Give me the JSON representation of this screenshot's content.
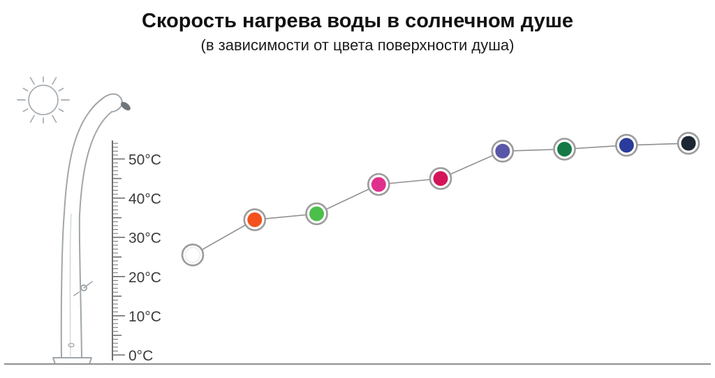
{
  "title": "Скорость нагрева воды в солнечном душе",
  "subtitle": "(в зависимости от цвета поверхности душа)",
  "chart_data": {
    "type": "line",
    "title": "Скорость нагрева воды в солнечном душе",
    "subtitle": "(в зависимости от цвета поверхности душа)",
    "xlabel": "",
    "ylabel": "",
    "ylim": [
      0,
      55
    ],
    "yticks": [
      0,
      10,
      20,
      30,
      40,
      50
    ],
    "ytick_labels": [
      "0°C",
      "10°C",
      "20°C",
      "30°C",
      "40°C",
      "50°C"
    ],
    "grid": false,
    "legend_position": "none",
    "series": [
      {
        "points": [
          {
            "color_name": "white",
            "hex": "#ffffff",
            "value": 25.5
          },
          {
            "color_name": "orange",
            "hex": "#f4511e",
            "value": 34.5
          },
          {
            "color_name": "green",
            "hex": "#4bbf4a",
            "value": 36
          },
          {
            "color_name": "magenta",
            "hex": "#e0308d",
            "value": 43.5
          },
          {
            "color_name": "crimson",
            "hex": "#d4145a",
            "value": 45
          },
          {
            "color_name": "violet",
            "hex": "#5a57a6",
            "value": 52
          },
          {
            "color_name": "dark-green",
            "hex": "#137a46",
            "value": 52.5
          },
          {
            "color_name": "dark-blue",
            "hex": "#2a3b9b",
            "value": 53.5
          },
          {
            "color_name": "black-navy",
            "hex": "#1c2733",
            "value": 54
          }
        ]
      }
    ],
    "marker_ring_color": "#9b9b9b",
    "line_color": "#8f8f8f",
    "axis_color": "#8f8f8f"
  },
  "illustration": {
    "sun_icon": "sun-sketch",
    "shower_icon": "solar-shower-sketch",
    "sketch_stroke_color": "#a6acb0"
  }
}
